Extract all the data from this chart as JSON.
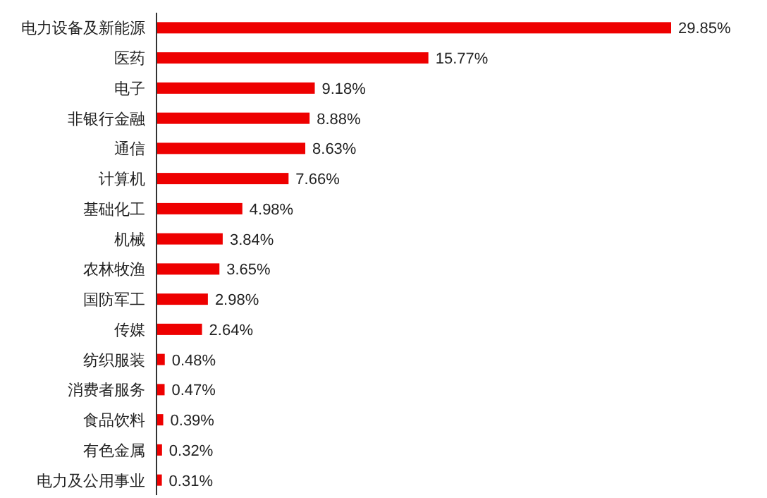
{
  "chart_data": {
    "type": "bar",
    "orientation": "horizontal",
    "color": "#ee0000",
    "categories": [
      "电力设备及新能源",
      "医药",
      "电子",
      "非银行金融",
      "通信",
      "计算机",
      "基础化工",
      "机械",
      "农林牧渔",
      "国防军工",
      "传媒",
      "纺织服装",
      "消费者服务",
      "食品饮料",
      "有色金属",
      "电力及公用事业"
    ],
    "values": [
      29.85,
      15.77,
      9.18,
      8.88,
      8.63,
      7.66,
      4.98,
      3.84,
      3.65,
      2.98,
      2.64,
      0.48,
      0.47,
      0.39,
      0.32,
      0.31
    ],
    "value_labels": [
      "29.85%",
      "15.77%",
      "9.18%",
      "8.88%",
      "8.63%",
      "7.66%",
      "4.98%",
      "3.84%",
      "3.65%",
      "2.98%",
      "2.64%",
      "0.48%",
      "0.47%",
      "0.39%",
      "0.32%",
      "0.31%"
    ]
  }
}
